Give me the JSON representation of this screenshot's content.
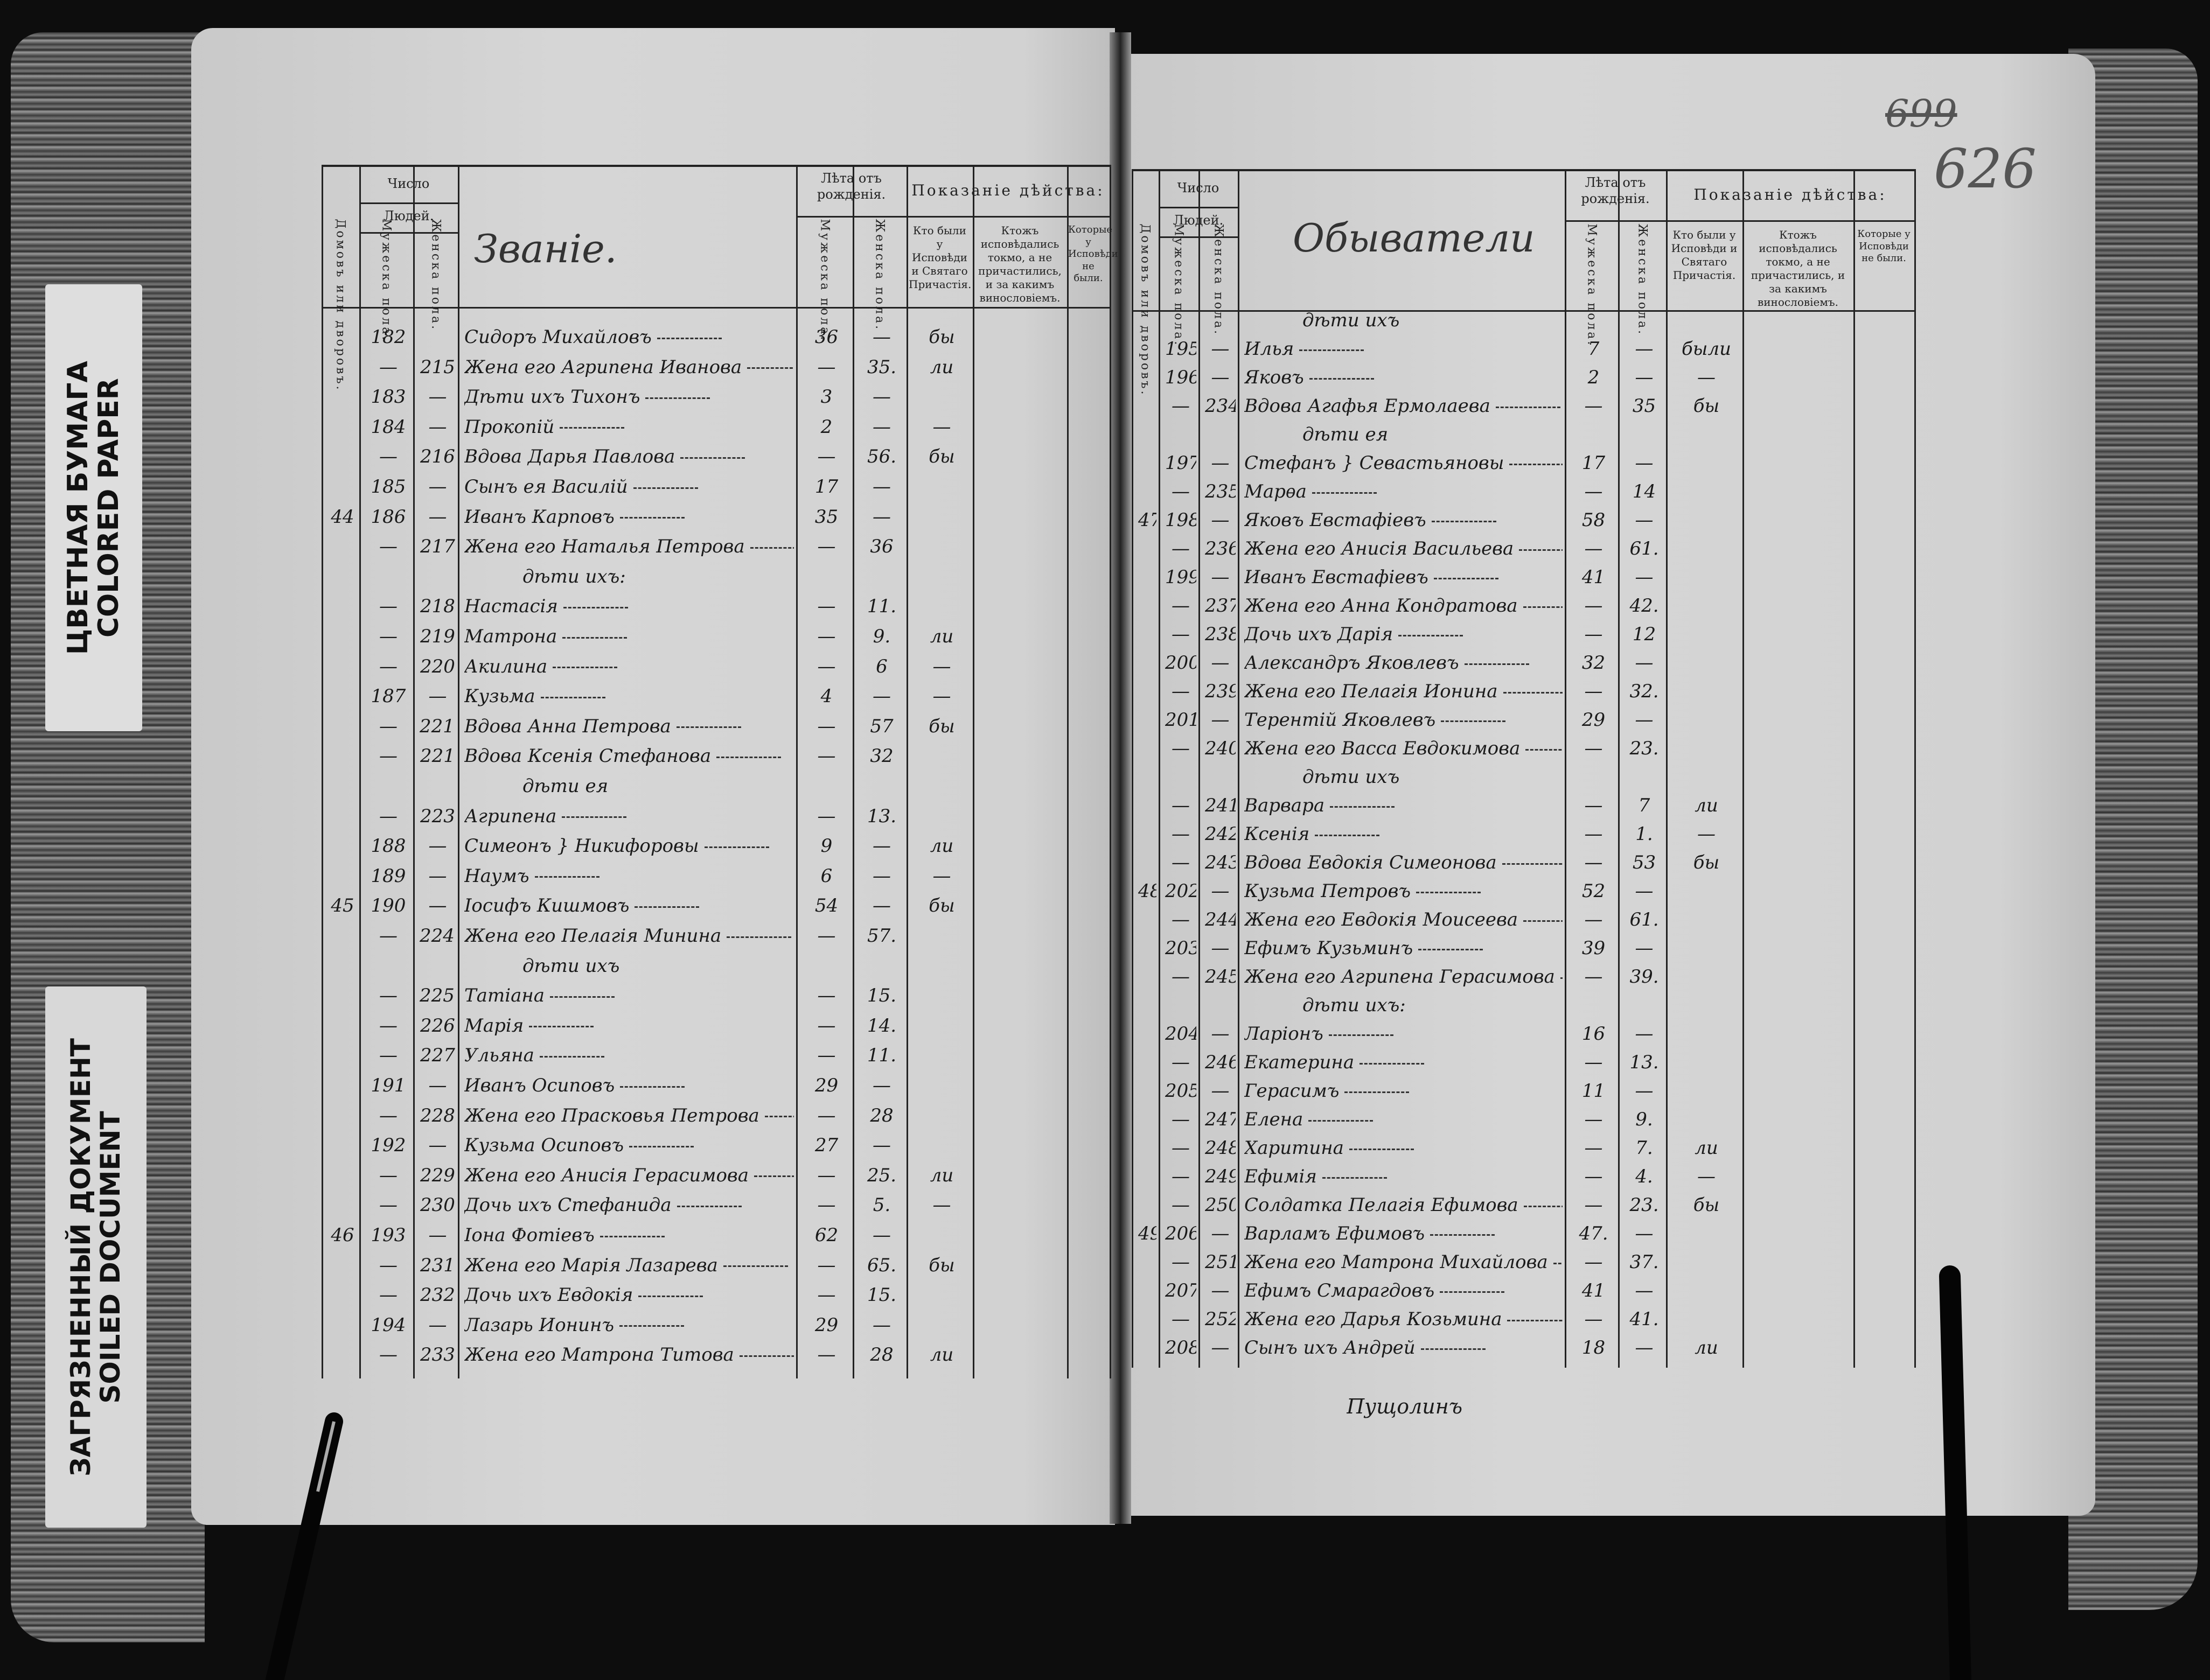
{
  "labels": {
    "colored_paper_ru": "ЦВЕТНАЯ БУМАГА",
    "colored_paper_en": "COLORED PAPER",
    "soiled_ru": "ЗАГРЯЗНЕННЫЙ ДОКУМЕНТ",
    "soiled_en": "SOILED DOCUMENT"
  },
  "page_numbers": {
    "old": "699",
    "current": "626"
  },
  "header": {
    "houses": "Домовъ или дворовъ.",
    "number": "Число",
    "people": "Людей.",
    "male": "Мужеска пола.",
    "female": "Женска пола.",
    "age": "Лѣта отъ рожденія.",
    "action": "Показаніе дѣйства:",
    "confessed": "Кто были у Исповѣди и Святаго Причастія.",
    "confessed_only": "Ктожъ исповѣдались токмо, а не причастились, и за какимъ виноcловіемъ.",
    "not_confessed": "Которые у Исповѣди не были."
  },
  "left": {
    "title": "Званіе.",
    "rows": [
      [
        "",
        "182",
        "",
        "Сидоръ Михайловъ",
        "36",
        "—",
        "бы"
      ],
      [
        "",
        "—",
        "215",
        "Жена его Агрипена Иванова",
        "—",
        "35.",
        "ли"
      ],
      [
        "",
        "183",
        "—",
        "Дѣти ихъ Тихонъ",
        "3",
        "—",
        ""
      ],
      [
        "",
        "184",
        "—",
        "Прокопій",
        "2",
        "—",
        "—"
      ],
      [
        "",
        "—",
        "216",
        "Вдова Дарья Павлова",
        "—",
        "56.",
        "бы"
      ],
      [
        "",
        "185",
        "—",
        "Сынъ ея Василій",
        "17",
        "—",
        ""
      ],
      [
        "44",
        "186",
        "—",
        "Иванъ Карповъ",
        "35",
        "—",
        ""
      ],
      [
        "",
        "—",
        "217",
        "Жена его Наталья Петрова",
        "—",
        "36",
        ""
      ],
      [
        "",
        "",
        "",
        "дѣти ихъ:",
        "",
        "",
        ""
      ],
      [
        "",
        "—",
        "218",
        "Настасія",
        "—",
        "11.",
        ""
      ],
      [
        "",
        "—",
        "219",
        "Матрона",
        "—",
        "9.",
        "ли"
      ],
      [
        "",
        "—",
        "220",
        "Акилина",
        "—",
        "6",
        "—"
      ],
      [
        "",
        "187",
        "—",
        "Кузьма",
        "4",
        "—",
        "—"
      ],
      [
        "",
        "—",
        "221.",
        "Вдова Анна Петрова",
        "—",
        "57",
        "бы"
      ],
      [
        "",
        "—",
        "221",
        "Вдова Ксенія Стефанова",
        "—",
        "32",
        ""
      ],
      [
        "",
        "",
        "",
        "дѣти ея",
        "",
        "",
        ""
      ],
      [
        "",
        "—",
        "223",
        "Агрипена",
        "—",
        "13.",
        ""
      ],
      [
        "",
        "188",
        "—",
        "Симеонъ } Никифоровы",
        "9",
        "—",
        "ли"
      ],
      [
        "",
        "189",
        "—",
        "Наумъ",
        "6",
        "—",
        "—"
      ],
      [
        "45",
        "190",
        "—",
        "Іосифъ Кишмовъ",
        "54",
        "—",
        "бы"
      ],
      [
        "",
        "—",
        "224.",
        "Жена его Пелагія Минина",
        "—",
        "57.",
        ""
      ],
      [
        "",
        "",
        "",
        "дѣти ихъ",
        "",
        "",
        ""
      ],
      [
        "",
        "—",
        "225.",
        "Татіана",
        "—",
        "15.",
        ""
      ],
      [
        "",
        "—",
        "226",
        "Марія",
        "—",
        "14.",
        ""
      ],
      [
        "",
        "—",
        "227",
        "Ульяна",
        "—",
        "11.",
        ""
      ],
      [
        "",
        "191",
        "—",
        "Иванъ Осиповъ",
        "29",
        "—",
        ""
      ],
      [
        "",
        "—",
        "228",
        "Жена его Прасковья Петрова",
        "—",
        "28",
        ""
      ],
      [
        "",
        "192",
        "—",
        "Кузьма Осиповъ",
        "27",
        "—",
        ""
      ],
      [
        "",
        "—",
        "229",
        "Жена его Анисія Герасимова",
        "—",
        "25.",
        "ли"
      ],
      [
        "",
        "—",
        "230",
        "Дочь ихъ Стефанида",
        "—",
        "5.",
        "—"
      ],
      [
        "46",
        "193",
        "—",
        "Іона Фотіевъ",
        "62",
        "—",
        ""
      ],
      [
        "",
        "—",
        "231",
        "Жена его Марія Лазарева",
        "—",
        "65.",
        "бы"
      ],
      [
        "",
        "—",
        "232",
        "Дочь ихъ Евдокія",
        "—",
        "15.",
        ""
      ],
      [
        "",
        "194",
        "—",
        "Лазарь Ионинъ",
        "29",
        "—",
        ""
      ],
      [
        "",
        "—",
        "233",
        "Жена его Матрона Титова",
        "—",
        "28",
        "ли"
      ]
    ]
  },
  "right": {
    "title": "Обыватели",
    "rows": [
      [
        "",
        "",
        "",
        "дѣти ихъ",
        "",
        "",
        ""
      ],
      [
        "",
        "195",
        "—",
        "Илья",
        "7",
        "—",
        "были"
      ],
      [
        "",
        "196",
        "—",
        "Яковъ",
        "2",
        "—",
        "—"
      ],
      [
        "",
        "—",
        "234",
        "Вдова Агафья Ермолаева",
        "—",
        "35",
        "бы"
      ],
      [
        "",
        "",
        "",
        "дѣти ея",
        "",
        "",
        ""
      ],
      [
        "",
        "197",
        "—",
        "Стефанъ } Севастьяновы",
        "17",
        "—",
        ""
      ],
      [
        "",
        "—",
        "235",
        "Марѳа",
        "—",
        "14",
        ""
      ],
      [
        "47",
        "198",
        "—",
        "Яковъ Евстафіевъ",
        "58",
        "—",
        ""
      ],
      [
        "",
        "—",
        "236",
        "Жена его Анисія Васильева",
        "—",
        "61.",
        ""
      ],
      [
        "",
        "199",
        "—",
        "Иванъ Евстафіевъ",
        "41",
        "—",
        ""
      ],
      [
        "",
        "—",
        "237",
        "Жена его Анна Кондратова",
        "—",
        "42.",
        ""
      ],
      [
        "",
        "—",
        "238",
        "Дочь ихъ Дарія",
        "—",
        "12",
        ""
      ],
      [
        "",
        "200",
        "—",
        "Александръ Яковлевъ",
        "32",
        "—",
        ""
      ],
      [
        "",
        "—",
        "239",
        "Жена его Пелагія Ионина",
        "—",
        "32.",
        ""
      ],
      [
        "",
        "201",
        "—",
        "Терентій Яковлевъ",
        "29",
        "—",
        ""
      ],
      [
        "",
        "—",
        "240",
        "Жена его Васса Евдокимова",
        "—",
        "23.",
        ""
      ],
      [
        "",
        "",
        "",
        "дѣти ихъ",
        "",
        "",
        ""
      ],
      [
        "",
        "—",
        "241",
        "Варвара",
        "—",
        "7",
        "ли"
      ],
      [
        "",
        "—",
        "242",
        "Ксенія",
        "—",
        "1.",
        "—"
      ],
      [
        "",
        "—",
        "243",
        "Вдова Евдокія Симеонова",
        "—",
        "53",
        "бы"
      ],
      [
        "48",
        "202",
        "—",
        "Кузьма Петровъ",
        "52",
        "—",
        ""
      ],
      [
        "",
        "—",
        "244",
        "Жена его Евдокія Моисеева",
        "—",
        "61.",
        ""
      ],
      [
        "",
        "203",
        "—",
        "Ефимъ Кузьминъ",
        "39",
        "—",
        ""
      ],
      [
        "",
        "—",
        "245",
        "Жена его Агрипена Герасимова",
        "—",
        "39.",
        ""
      ],
      [
        "",
        "",
        "",
        "дѣти ихъ:",
        "",
        "",
        ""
      ],
      [
        "",
        "204",
        "—",
        "Ларіонъ",
        "16",
        "—",
        ""
      ],
      [
        "",
        "—",
        "246",
        "Екатерина",
        "—",
        "13.",
        ""
      ],
      [
        "",
        "205",
        "—",
        "Герасимъ",
        "11",
        "—",
        ""
      ],
      [
        "",
        "—",
        "247",
        "Елена",
        "—",
        "9.",
        ""
      ],
      [
        "",
        "—",
        "248",
        "Харитина",
        "—",
        "7.",
        "ли"
      ],
      [
        "",
        "—",
        "249",
        "Ефимія",
        "—",
        "4.",
        "—"
      ],
      [
        "",
        "—",
        "250",
        "Солдатка Пелагія Ефимова",
        "—",
        "23.",
        "бы"
      ],
      [
        "49",
        "206",
        "—",
        "Варламъ Ефимовъ",
        "47.",
        "—",
        ""
      ],
      [
        "",
        "—",
        "251.",
        "Жена его Матрона Михайлова",
        "—",
        "37.",
        ""
      ],
      [
        "",
        "207",
        "—",
        "Ефимъ Смарагдовъ",
        "41",
        "—",
        ""
      ],
      [
        "",
        "—",
        "252",
        "Жена его Дарья Козьмина",
        "—",
        "41.",
        ""
      ],
      [
        "",
        "208",
        "—",
        "Сынъ ихъ Андрей",
        "18",
        "—",
        "ли"
      ]
    ],
    "signature": "Пущолинъ"
  },
  "colors": {
    "background": "#0d0d0d",
    "paper": "#d2d2d2",
    "ink": "#1e1e1e"
  }
}
